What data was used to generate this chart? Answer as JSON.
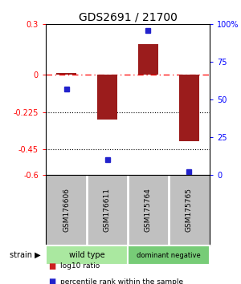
{
  "title": "GDS2691 / 21700",
  "samples": [
    "GSM176606",
    "GSM176611",
    "GSM175764",
    "GSM175765"
  ],
  "log10_ratio": [
    0.01,
    -0.27,
    0.18,
    -0.4
  ],
  "percentile_rank": [
    57,
    10,
    96,
    2
  ],
  "bar_color": "#9b1c1c",
  "square_color": "#2222cc",
  "left_ylim": [
    -0.6,
    0.3
  ],
  "right_ylim": [
    0,
    100
  ],
  "left_yticks": [
    0.3,
    0.0,
    -0.225,
    -0.45,
    -0.6
  ],
  "left_yticklabels": [
    "0.3",
    "0",
    "-0.225",
    "-0.45",
    "-0.6"
  ],
  "right_yticks": [
    100,
    75,
    50,
    25,
    0
  ],
  "right_yticklabels": [
    "100%",
    "75",
    "50",
    "25",
    "0"
  ],
  "hlines_dotted": [
    -0.225,
    -0.45
  ],
  "hline_dashdot_val": 0.0,
  "groups": [
    {
      "label": "wild type",
      "start": 0,
      "end": 2,
      "color": "#aae8a0"
    },
    {
      "label": "dominant negative",
      "start": 2,
      "end": 4,
      "color": "#77cc77"
    }
  ],
  "legend_items": [
    {
      "color": "#cc2222",
      "label": "log10 ratio"
    },
    {
      "color": "#2222cc",
      "label": "percentile rank within the sample"
    }
  ],
  "bar_width": 0.5,
  "sample_box_color": "#c0c0c0",
  "sample_box_border": "#888888"
}
